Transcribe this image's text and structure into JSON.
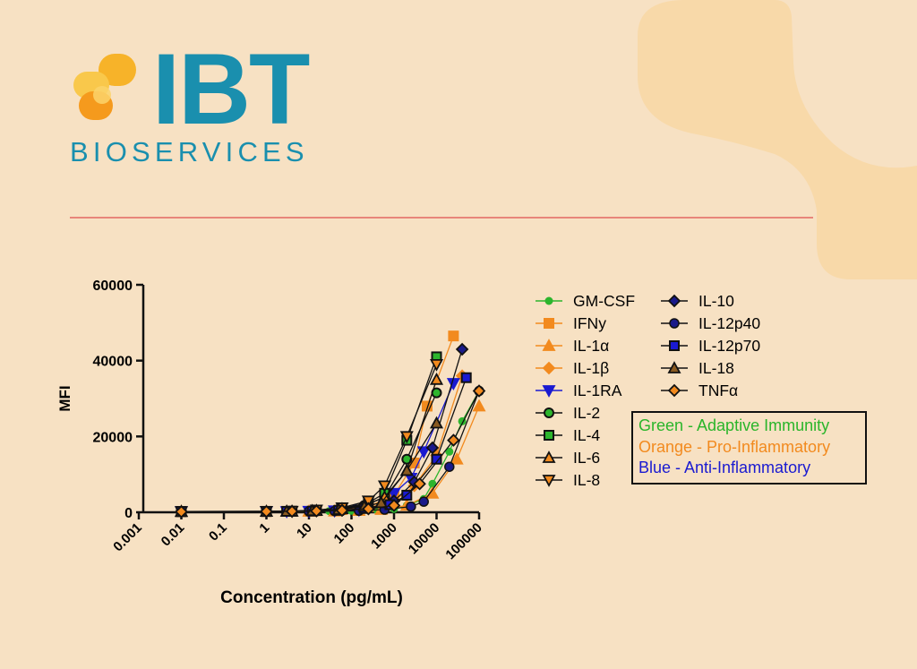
{
  "brand": {
    "name": "IBT",
    "subname": "BIOSERVICES",
    "primary_color": "#1a8fae",
    "accent_colors": [
      "#f7b329",
      "#f59a1d"
    ],
    "divider_color": "#e8857a"
  },
  "chart_data": {
    "type": "line",
    "xlabel": "Concentration (pg/mL)",
    "ylabel": "MFI",
    "xscale": "log",
    "xlim": [
      0.001,
      100000
    ],
    "ylim": [
      0,
      60000
    ],
    "x_ticks": [
      "0.001",
      "0.01",
      "0.1",
      "1",
      "10",
      "100",
      "1000",
      "10000",
      "100000"
    ],
    "y_ticks": [
      "0",
      "20000",
      "40000",
      "60000"
    ],
    "legend_position": "right",
    "series": [
      {
        "name": "GM-CSF",
        "color": "#2db52d",
        "marker": "circle",
        "points": [
          [
            0.01,
            200
          ],
          [
            1,
            200
          ],
          [
            3,
            200
          ],
          [
            10,
            250
          ],
          [
            30,
            300
          ],
          [
            100,
            400
          ],
          [
            400,
            600
          ],
          [
            1000,
            900
          ],
          [
            2000,
            1800
          ],
          [
            5000,
            3500
          ],
          [
            8000,
            7500
          ],
          [
            20000,
            16000
          ],
          [
            40000,
            24000
          ],
          [
            100000,
            32000
          ]
        ]
      },
      {
        "name": "IFNy",
        "color": "#f28a1e",
        "marker": "square",
        "points": [
          [
            0.01,
            150
          ],
          [
            1,
            200
          ],
          [
            4,
            250
          ],
          [
            15,
            400
          ],
          [
            60,
            700
          ],
          [
            250,
            1500
          ],
          [
            1000,
            4500
          ],
          [
            3000,
            13000
          ],
          [
            6000,
            28000
          ],
          [
            25000,
            46500
          ]
        ]
      },
      {
        "name": "IL-1α",
        "color": "#f28a1e",
        "marker": "triangle",
        "points": [
          [
            0.01,
            200
          ],
          [
            1,
            200
          ],
          [
            3,
            200
          ],
          [
            10,
            250
          ],
          [
            40,
            300
          ],
          [
            150,
            450
          ],
          [
            500,
            700
          ],
          [
            2000,
            1800
          ],
          [
            8000,
            5000
          ],
          [
            30000,
            14000
          ],
          [
            100000,
            28000
          ]
        ]
      },
      {
        "name": "IL-1β",
        "color": "#f28a1e",
        "marker": "diamond",
        "points": [
          [
            0.01,
            150
          ],
          [
            1,
            200
          ],
          [
            4,
            250
          ],
          [
            15,
            350
          ],
          [
            60,
            600
          ],
          [
            250,
            1200
          ],
          [
            1000,
            3000
          ],
          [
            3000,
            7000
          ],
          [
            10000,
            15000
          ],
          [
            40000,
            36000
          ]
        ]
      },
      {
        "name": "IL-1RA",
        "color": "#1a1ad1",
        "marker": "triangle-down",
        "points": [
          [
            0.01,
            200
          ],
          [
            1,
            200
          ],
          [
            3,
            200
          ],
          [
            10,
            300
          ],
          [
            40,
            400
          ],
          [
            150,
            600
          ],
          [
            600,
            1500
          ],
          [
            1000,
            5000
          ],
          [
            2500,
            9000
          ],
          [
            5000,
            16000
          ],
          [
            25000,
            34000
          ]
        ]
      },
      {
        "name": "IL-2",
        "color": "#2db52d",
        "marker": "circle-outline",
        "points": [
          [
            0.01,
            200
          ],
          [
            1,
            200
          ],
          [
            3,
            250
          ],
          [
            12,
            400
          ],
          [
            50,
            800
          ],
          [
            200,
            1800
          ],
          [
            600,
            4000
          ],
          [
            2000,
            14000
          ],
          [
            10000,
            31500
          ]
        ]
      },
      {
        "name": "IL-4",
        "color": "#2db52d",
        "marker": "square-outline",
        "points": [
          [
            0.01,
            200
          ],
          [
            1,
            250
          ],
          [
            4,
            300
          ],
          [
            15,
            500
          ],
          [
            60,
            1000
          ],
          [
            250,
            2500
          ],
          [
            600,
            5000
          ],
          [
            2000,
            19000
          ],
          [
            10000,
            41000
          ]
        ]
      },
      {
        "name": "IL-6",
        "color": "#f28a1e",
        "marker": "triangle-outline",
        "points": [
          [
            0.01,
            150
          ],
          [
            1,
            200
          ],
          [
            4,
            250
          ],
          [
            15,
            450
          ],
          [
            60,
            900
          ],
          [
            250,
            2200
          ],
          [
            600,
            4000
          ],
          [
            2000,
            11000
          ],
          [
            10000,
            35000
          ]
        ]
      },
      {
        "name": "IL-8",
        "color": "#f28a1e",
        "marker": "triangle-down-outline",
        "points": [
          [
            0.01,
            200
          ],
          [
            1,
            250
          ],
          [
            4,
            300
          ],
          [
            15,
            600
          ],
          [
            60,
            1200
          ],
          [
            250,
            3000
          ],
          [
            600,
            7000
          ],
          [
            2000,
            20000
          ],
          [
            10000,
            39000
          ]
        ]
      },
      {
        "name": "IL-10",
        "color": "#1a1a8a",
        "marker": "diamond-filled",
        "points": [
          [
            0.01,
            150
          ],
          [
            1,
            200
          ],
          [
            4,
            250
          ],
          [
            15,
            350
          ],
          [
            60,
            500
          ],
          [
            250,
            1000
          ],
          [
            1000,
            3000
          ],
          [
            3000,
            8000
          ],
          [
            8000,
            17000
          ],
          [
            40000,
            43000
          ]
        ]
      },
      {
        "name": "IL-12p40",
        "color": "#111111",
        "marker": "circle-black",
        "points": [
          [
            0.01,
            200
          ],
          [
            1,
            200
          ],
          [
            3,
            200
          ],
          [
            10,
            250
          ],
          [
            40,
            300
          ],
          [
            150,
            400
          ],
          [
            600,
            700
          ],
          [
            2500,
            1500
          ],
          [
            5000,
            2800
          ],
          [
            20000,
            12000
          ],
          [
            100000,
            32000
          ]
        ]
      },
      {
        "name": "IL-12p70",
        "color": "#1a1ad1",
        "marker": "square-black",
        "points": [
          [
            0.01,
            200
          ],
          [
            1,
            200
          ],
          [
            3,
            250
          ],
          [
            12,
            300
          ],
          [
            50,
            500
          ],
          [
            200,
            1000
          ],
          [
            800,
            2000
          ],
          [
            2000,
            4500
          ],
          [
            10000,
            14000
          ],
          [
            50000,
            35500
          ]
        ]
      },
      {
        "name": "IL-18",
        "color": "#111111",
        "marker": "triangle-orange",
        "points": [
          [
            0.01,
            200
          ],
          [
            1,
            200
          ],
          [
            3,
            250
          ],
          [
            12,
            400
          ],
          [
            50,
            700
          ],
          [
            200,
            1500
          ],
          [
            500,
            2500
          ],
          [
            2000,
            11000
          ],
          [
            10000,
            23500
          ]
        ]
      },
      {
        "name": "TNFα",
        "color": "#f28a1e",
        "marker": "diamond-outline",
        "points": [
          [
            0.01,
            150
          ],
          [
            1,
            200
          ],
          [
            4,
            250
          ],
          [
            15,
            350
          ],
          [
            60,
            500
          ],
          [
            250,
            900
          ],
          [
            1000,
            1800
          ],
          [
            4000,
            7500
          ],
          [
            25000,
            19000
          ],
          [
            100000,
            32000
          ]
        ]
      }
    ],
    "category_legend": [
      {
        "text": "Green - Adaptive Immunity",
        "color": "#2ab52a"
      },
      {
        "text": "Orange - Pro-Inflammatory",
        "color": "#f28a1e"
      },
      {
        "text": "Blue - Anti-Inflammatory",
        "color": "#1a1ad1"
      }
    ]
  }
}
